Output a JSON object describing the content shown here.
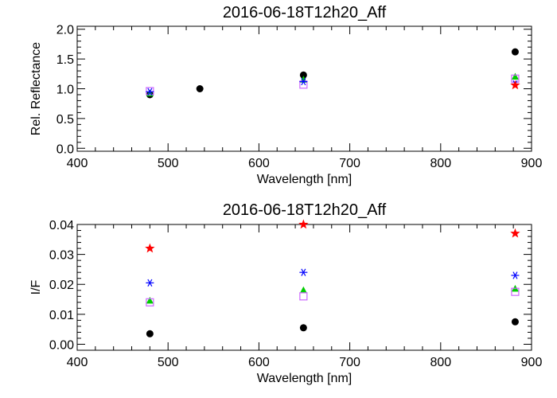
{
  "chart_data": [
    {
      "type": "scatter",
      "title": "2016-06-18T12h20_Aff",
      "xlabel": "Wavelength [nm]",
      "ylabel": "Rel. Reflectance",
      "xlim": [
        400,
        900
      ],
      "ylim": [
        -0.05,
        2.05
      ],
      "xticks": [
        "400",
        "500",
        "600",
        "700",
        "800",
        "900"
      ],
      "yticks": [
        "0.0",
        "0.5",
        "1.0",
        "1.5",
        "2.0"
      ],
      "series": [
        {
          "marker": "circle",
          "color": "#000000",
          "x": [
            480,
            535,
            649,
            882
          ],
          "y": [
            0.9,
            1.0,
            1.23,
            1.62
          ]
        },
        {
          "marker": "triangle",
          "color": "#00cc00",
          "x": [
            480,
            649,
            882
          ],
          "y": [
            0.92,
            1.15,
            1.2
          ]
        },
        {
          "marker": "square",
          "color": "#cc66ff",
          "x": [
            480,
            649,
            882
          ],
          "y": [
            0.96,
            1.07,
            1.17
          ]
        },
        {
          "marker": "asterisk",
          "color": "#0000ff",
          "x": [
            480,
            649,
            882
          ],
          "y": [
            0.95,
            1.12,
            1.08
          ]
        },
        {
          "marker": "star",
          "color": "#ff0000",
          "x": [
            882
          ],
          "y": [
            1.06
          ]
        }
      ]
    },
    {
      "type": "scatter",
      "title": "2016-06-18T12h20_Aff",
      "xlabel": "Wavelength [nm]",
      "ylabel": "I/F",
      "xlim": [
        400,
        900
      ],
      "ylim": [
        -0.002,
        0.04
      ],
      "xticks": [
        "400",
        "500",
        "600",
        "700",
        "800",
        "900"
      ],
      "yticks": [
        "0.00",
        "0.01",
        "0.02",
        "0.03",
        "0.04"
      ],
      "series": [
        {
          "marker": "star",
          "color": "#ff0000",
          "x": [
            480,
            649,
            882
          ],
          "y": [
            0.032,
            0.04,
            0.037
          ]
        },
        {
          "marker": "asterisk",
          "color": "#0000ff",
          "x": [
            480,
            649,
            882
          ],
          "y": [
            0.0205,
            0.024,
            0.023
          ]
        },
        {
          "marker": "triangle",
          "color": "#00cc00",
          "x": [
            480,
            649,
            882
          ],
          "y": [
            0.0145,
            0.018,
            0.0185
          ]
        },
        {
          "marker": "square",
          "color": "#cc66ff",
          "x": [
            480,
            649,
            882
          ],
          "y": [
            0.014,
            0.016,
            0.0175
          ]
        },
        {
          "marker": "circle",
          "color": "#000000",
          "x": [
            480,
            649,
            882
          ],
          "y": [
            0.0035,
            0.0055,
            0.0075
          ]
        }
      ]
    }
  ]
}
